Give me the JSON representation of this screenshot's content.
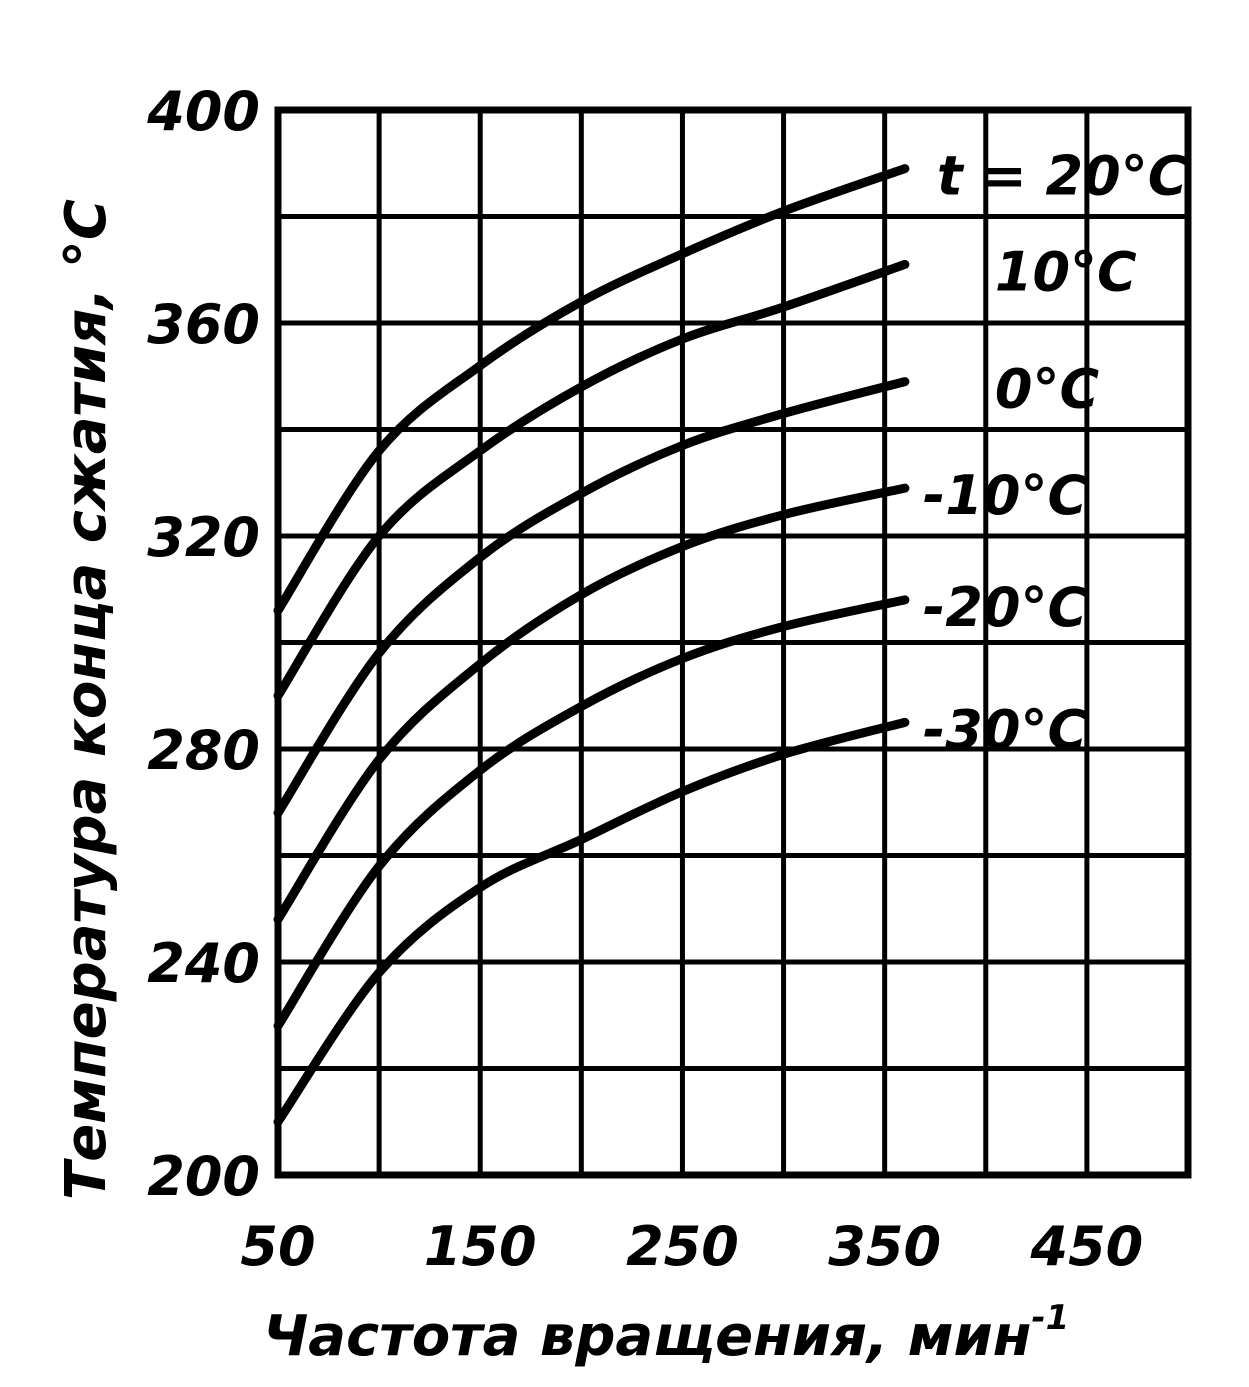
{
  "chart_data": {
    "type": "line",
    "xlabel": "Частота вращения, мин",
    "xlabel_sup": "-1",
    "ylabel": "Температура конца сжатия, °С",
    "xlim": [
      50,
      500
    ],
    "ylim": [
      200,
      400
    ],
    "x_ticks": [
      50,
      150,
      250,
      350,
      450
    ],
    "y_ticks": [
      200,
      240,
      280,
      320,
      360,
      400
    ],
    "grid": true,
    "series": [
      {
        "name": "t = 20°С",
        "x": [
          50,
          100,
          150,
          200,
          250,
          300,
          360
        ],
        "y": [
          306,
          336,
          352,
          364,
          373,
          381,
          389
        ]
      },
      {
        "name": "10°С",
        "x": [
          50,
          100,
          150,
          200,
          250,
          300,
          360
        ],
        "y": [
          290,
          320,
          336,
          348,
          357,
          363,
          371
        ]
      },
      {
        "name": "0°С",
        "x": [
          50,
          100,
          150,
          200,
          250,
          300,
          360
        ],
        "y": [
          268,
          298,
          316,
          328,
          337,
          343,
          349
        ]
      },
      {
        "name": "-10°С",
        "x": [
          50,
          100,
          150,
          200,
          250,
          300,
          360
        ],
        "y": [
          248,
          278,
          296,
          309,
          318,
          324,
          329
        ]
      },
      {
        "name": "-20°С",
        "x": [
          50,
          100,
          150,
          200,
          250,
          300,
          360
        ],
        "y": [
          228,
          258,
          276,
          288,
          297,
          303,
          308
        ]
      },
      {
        "name": "-30°С",
        "x": [
          50,
          100,
          150,
          200,
          250,
          300,
          360
        ],
        "y": [
          210,
          238,
          254,
          263,
          272,
          279,
          285
        ]
      }
    ]
  }
}
